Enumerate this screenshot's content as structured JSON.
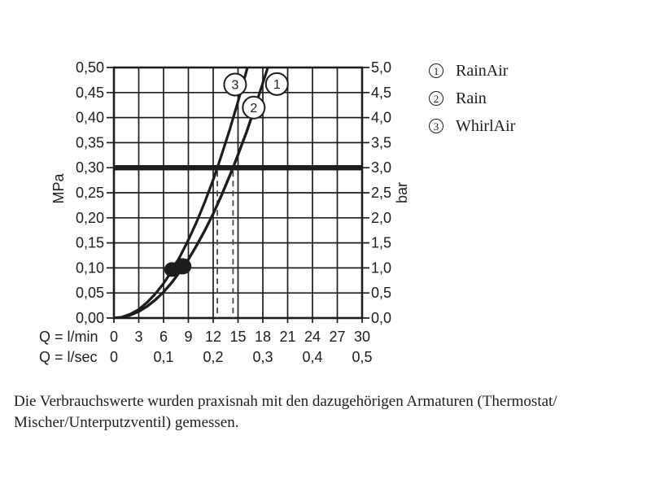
{
  "page": {
    "background": "#ffffff",
    "ink": "#1d1d1b",
    "guide_color": "#4a4a4a"
  },
  "legend": {
    "items": [
      {
        "number": "1",
        "label": "RainAir"
      },
      {
        "number": "2",
        "label": "Rain"
      },
      {
        "number": "3",
        "label": "WhirlAir"
      }
    ]
  },
  "caption": {
    "line1": "Die Verbrauchswerte wurden praxisnah mit den dazugehörigen Armaturen (Thermostat/",
    "line2": "Mischer/Unterputzventil) gemessen."
  },
  "chart_data": {
    "type": "line",
    "title": "",
    "grid": true,
    "legend_position": "top-right",
    "x_axis_lmin": {
      "title": "Q = l/min",
      "range": [
        0,
        30
      ],
      "ticks": [
        {
          "q": 0,
          "label": "0"
        },
        {
          "q": 3,
          "label": "3"
        },
        {
          "q": 6,
          "label": "6"
        },
        {
          "q": 9,
          "label": "9"
        },
        {
          "q": 12,
          "label": "12"
        },
        {
          "q": 15,
          "label": "15"
        },
        {
          "q": 18,
          "label": "18"
        },
        {
          "q": 21,
          "label": "21"
        },
        {
          "q": 24,
          "label": "24"
        },
        {
          "q": 27,
          "label": "27"
        },
        {
          "q": 30,
          "label": "30"
        }
      ]
    },
    "x_axis_lsec": {
      "title": "Q = l/sec",
      "ticks": [
        {
          "q": 0,
          "label": "0"
        },
        {
          "q": 6,
          "label": "0,1"
        },
        {
          "q": 12,
          "label": "0,2"
        },
        {
          "q": 18,
          "label": "0,3"
        },
        {
          "q": 24,
          "label": "0,4"
        },
        {
          "q": 30,
          "label": "0,5"
        }
      ]
    },
    "y_axis_left": {
      "title": "MPa",
      "range": [
        0,
        0.5
      ],
      "ticks": [
        {
          "mpa": 0.0,
          "label": "0,00"
        },
        {
          "mpa": 0.05,
          "label": "0,05"
        },
        {
          "mpa": 0.1,
          "label": "0,10"
        },
        {
          "mpa": 0.15,
          "label": "0,15"
        },
        {
          "mpa": 0.2,
          "label": "0,20"
        },
        {
          "mpa": 0.25,
          "label": "0,25"
        },
        {
          "mpa": 0.3,
          "label": "0,30"
        },
        {
          "mpa": 0.35,
          "label": "0,35"
        },
        {
          "mpa": 0.4,
          "label": "0,40"
        },
        {
          "mpa": 0.45,
          "label": "0,45"
        },
        {
          "mpa": 0.5,
          "label": "0,50"
        }
      ]
    },
    "y_axis_right": {
      "title": "bar",
      "range": [
        0,
        5
      ],
      "ticks": [
        {
          "bar": 0.0,
          "label": "0,0"
        },
        {
          "bar": 0.5,
          "label": "0,5"
        },
        {
          "bar": 1.0,
          "label": "1,0"
        },
        {
          "bar": 1.5,
          "label": "1,5"
        },
        {
          "bar": 2.0,
          "label": "2,0"
        },
        {
          "bar": 2.5,
          "label": "2,5"
        },
        {
          "bar": 3.0,
          "label": "3,0"
        },
        {
          "bar": 3.5,
          "label": "3,5"
        },
        {
          "bar": 4.0,
          "label": "4,0"
        },
        {
          "bar": 4.5,
          "label": "4,5"
        },
        {
          "bar": 5.0,
          "label": "5,0"
        }
      ]
    },
    "reference_line": {
      "mpa": 0.3,
      "bar": 3.0
    },
    "guide_lines_q": [
      12.5,
      14.4
    ],
    "operating_point": {
      "q_lmin": 7.6,
      "mpa": 0.1
    },
    "series": [
      {
        "id": "1",
        "name": "RainAir",
        "q_at_3bar_lmin": 14.4,
        "label_pos": [
          19.7,
          0.467
        ],
        "points": [
          [
            0,
            0
          ],
          [
            1,
            0.001
          ],
          [
            2,
            0.006
          ],
          [
            3,
            0.013
          ],
          [
            4,
            0.023
          ],
          [
            5,
            0.036
          ],
          [
            6,
            0.052
          ],
          [
            7,
            0.071
          ],
          [
            8,
            0.093
          ],
          [
            9,
            0.117
          ],
          [
            10,
            0.145
          ],
          [
            11,
            0.175
          ],
          [
            12,
            0.208
          ],
          [
            13,
            0.245
          ],
          [
            14,
            0.284
          ],
          [
            14.4,
            0.3
          ],
          [
            15,
            0.326
          ],
          [
            16,
            0.37
          ],
          [
            17,
            0.418
          ],
          [
            18,
            0.469
          ],
          [
            18.6,
            0.5
          ]
        ]
      },
      {
        "id": "2",
        "name": "Rain",
        "q_at_3bar_lmin": 14.4,
        "label_pos": [
          16.9,
          0.42
        ],
        "points": [
          [
            0,
            0
          ],
          [
            1,
            0.001
          ],
          [
            2,
            0.006
          ],
          [
            3,
            0.013
          ],
          [
            4,
            0.023
          ],
          [
            5,
            0.036
          ],
          [
            6,
            0.052
          ],
          [
            7,
            0.071
          ],
          [
            8,
            0.093
          ],
          [
            9,
            0.117
          ],
          [
            10,
            0.145
          ],
          [
            11,
            0.175
          ],
          [
            12,
            0.208
          ],
          [
            13,
            0.245
          ],
          [
            14,
            0.284
          ],
          [
            14.4,
            0.3
          ],
          [
            15,
            0.326
          ],
          [
            16,
            0.37
          ],
          [
            17,
            0.418
          ]
        ]
      },
      {
        "id": "3",
        "name": "WhirlAir",
        "q_at_3bar_lmin": 12.5,
        "label_pos": [
          14.65,
          0.466
        ],
        "points": [
          [
            0,
            0
          ],
          [
            1,
            0.002
          ],
          [
            2,
            0.008
          ],
          [
            3,
            0.017
          ],
          [
            4,
            0.031
          ],
          [
            5,
            0.048
          ],
          [
            6,
            0.069
          ],
          [
            7,
            0.094
          ],
          [
            8,
            0.123
          ],
          [
            9,
            0.156
          ],
          [
            10,
            0.192
          ],
          [
            11,
            0.232
          ],
          [
            12,
            0.276
          ],
          [
            12.5,
            0.3
          ],
          [
            13,
            0.325
          ],
          [
            14,
            0.376
          ],
          [
            15,
            0.432
          ],
          [
            16,
            0.492
          ],
          [
            16.2,
            0.504
          ]
        ]
      }
    ]
  }
}
